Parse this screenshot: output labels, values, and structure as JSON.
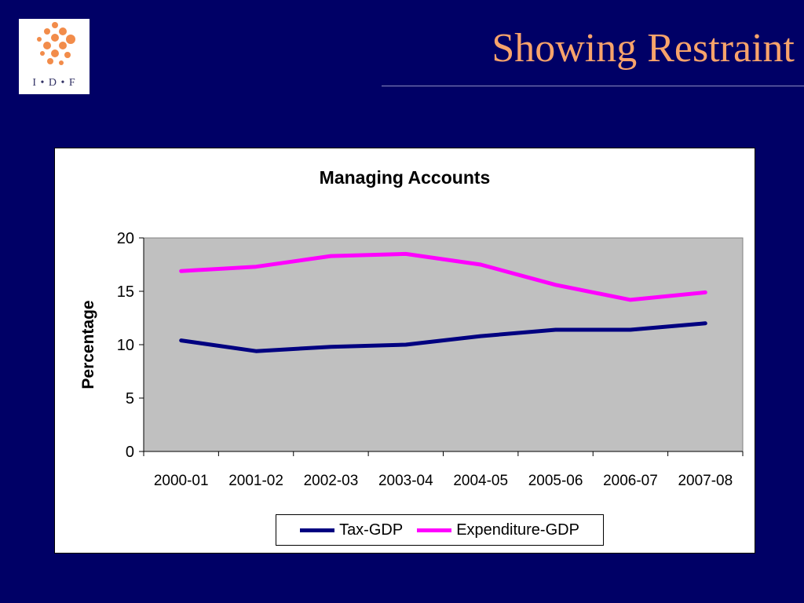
{
  "slide": {
    "title": "Showing Restraint",
    "logo_text": "I • D • F"
  },
  "colors": {
    "background": "#000066",
    "title": "#f7a36b",
    "plot_area": "#c0c0c0",
    "tax_gdp": "#000080",
    "expenditure_gdp": "#ff00ff",
    "logo_dots": "#f28c4a"
  },
  "chart_data": {
    "type": "line",
    "title": "Managing Accounts",
    "xlabel": "",
    "ylabel": "Percentage",
    "categories": [
      "2000-01",
      "2001-02",
      "2002-03",
      "2003-04",
      "2004-05",
      "2005-06",
      "2006-07",
      "2007-08"
    ],
    "ylim": [
      0,
      20
    ],
    "yticks": [
      "0",
      "5",
      "10",
      "15",
      "20"
    ],
    "grid": false,
    "legend_position": "bottom",
    "series": [
      {
        "name": "Tax-GDP",
        "color": "#000080",
        "values": [
          10.4,
          9.4,
          9.8,
          10.0,
          10.8,
          11.4,
          11.4,
          12.0
        ]
      },
      {
        "name": "Expenditure-GDP",
        "color": "#ff00ff",
        "values": [
          16.9,
          17.3,
          18.3,
          18.5,
          17.5,
          15.6,
          14.2,
          14.9
        ]
      }
    ]
  }
}
